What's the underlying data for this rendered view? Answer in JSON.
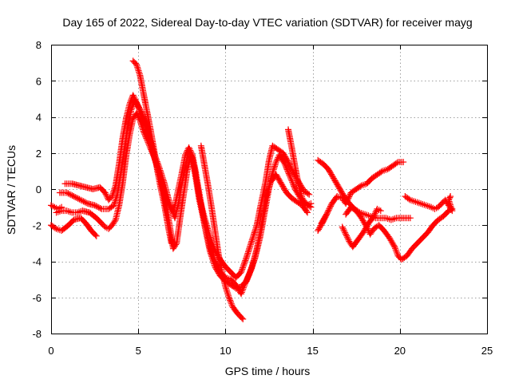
{
  "chart_data": {
    "type": "scatter",
    "title": "Day 165 of 2022, Sidereal Day-to-day VTEC variation (SDTVAR) for receiver mayg",
    "xlabel": "GPS time / hours",
    "ylabel": "SDTVAR / TECUs",
    "xlim": [
      0,
      25
    ],
    "ylim": [
      -8,
      8
    ],
    "x_ticks": [
      "0",
      "5",
      "10",
      "15",
      "20",
      "25"
    ],
    "y_ticks": [
      "-8",
      "-6",
      "-4",
      "-2",
      "0",
      "2",
      "4",
      "6",
      "8"
    ],
    "grid": true,
    "marker": "plus",
    "color": "#ff0000",
    "series": [
      {
        "name": "trace-a",
        "points": [
          [
            0.0,
            -2.0
          ],
          [
            0.3,
            -2.2
          ],
          [
            0.6,
            -2.3
          ],
          [
            1.0,
            -2.0
          ],
          [
            1.3,
            -1.7
          ],
          [
            1.7,
            -1.6
          ],
          [
            2.0,
            -1.9
          ],
          [
            2.3,
            -2.3
          ],
          [
            2.6,
            -2.6
          ]
        ]
      },
      {
        "name": "trace-b",
        "points": [
          [
            0.0,
            -0.9
          ],
          [
            0.2,
            -1.0
          ],
          [
            0.4,
            -1.1
          ],
          [
            0.6,
            -1.0
          ]
        ]
      },
      {
        "name": "trace-c",
        "points": [
          [
            0.3,
            -1.3
          ],
          [
            0.6,
            -1.2
          ],
          [
            0.9,
            -1.2
          ],
          [
            1.2,
            -1.3
          ],
          [
            1.5,
            -1.3
          ],
          [
            1.8,
            -1.2
          ],
          [
            2.2,
            -1.3
          ],
          [
            2.6,
            -1.6
          ],
          [
            2.9,
            -1.9
          ],
          [
            3.1,
            -2.1
          ],
          [
            3.3,
            -2.2
          ],
          [
            3.5,
            -2.0
          ],
          [
            3.7,
            -1.7
          ],
          [
            3.9,
            -0.9
          ],
          [
            4.1,
            0.3
          ],
          [
            4.3,
            1.8
          ],
          [
            4.5,
            3.0
          ],
          [
            4.7,
            3.9
          ],
          [
            4.9,
            4.2
          ],
          [
            5.1,
            3.8
          ],
          [
            5.3,
            3.2
          ],
          [
            5.6,
            2.5
          ],
          [
            5.9,
            1.8
          ],
          [
            6.2,
            0.9
          ],
          [
            6.5,
            -0.5
          ],
          [
            6.8,
            -2.0
          ],
          [
            7.0,
            -3.3
          ],
          [
            7.2,
            -3.0
          ],
          [
            7.4,
            -1.6
          ],
          [
            7.6,
            -0.3
          ],
          [
            7.8,
            1.0
          ],
          [
            8.0,
            1.8
          ],
          [
            8.2,
            1.3
          ],
          [
            8.4,
            0.3
          ],
          [
            8.6,
            -0.8
          ],
          [
            8.8,
            -2.0
          ],
          [
            9.1,
            -3.4
          ],
          [
            9.4,
            -4.3
          ],
          [
            9.7,
            -4.8
          ],
          [
            10.0,
            -5.1
          ],
          [
            10.3,
            -5.3
          ],
          [
            10.6,
            -5.5
          ],
          [
            10.9,
            -5.4
          ],
          [
            11.2,
            -5.1
          ],
          [
            11.5,
            -4.4
          ],
          [
            11.8,
            -3.3
          ],
          [
            12.1,
            -1.8
          ],
          [
            12.3,
            -0.5
          ],
          [
            12.6,
            0.4
          ],
          [
            12.9,
            0.8
          ],
          [
            13.2,
            0.3
          ],
          [
            13.5,
            -0.2
          ],
          [
            13.8,
            -0.5
          ],
          [
            14.1,
            -0.7
          ],
          [
            14.4,
            -0.9
          ],
          [
            14.7,
            -1.3
          ]
        ]
      },
      {
        "name": "trace-d",
        "points": [
          [
            0.5,
            -0.2
          ],
          [
            0.9,
            -0.2
          ],
          [
            1.3,
            -0.4
          ],
          [
            1.7,
            -0.6
          ],
          [
            2.1,
            -0.8
          ],
          [
            2.5,
            -0.9
          ],
          [
            2.9,
            -1.1
          ],
          [
            3.3,
            -1.1
          ],
          [
            3.6,
            -0.9
          ],
          [
            3.8,
            -0.3
          ],
          [
            4.0,
            0.9
          ],
          [
            4.2,
            2.2
          ],
          [
            4.4,
            3.5
          ],
          [
            4.6,
            4.4
          ],
          [
            4.8,
            4.9
          ],
          [
            5.0,
            4.6
          ],
          [
            5.3,
            4.0
          ],
          [
            5.6,
            3.0
          ],
          [
            5.9,
            2.0
          ],
          [
            6.2,
            1.2
          ],
          [
            6.5,
            0.3
          ],
          [
            6.8,
            -0.8
          ],
          [
            7.1,
            -1.6
          ],
          [
            7.3,
            -0.8
          ],
          [
            7.5,
            0.3
          ],
          [
            7.7,
            1.3
          ],
          [
            7.9,
            2.1
          ],
          [
            8.1,
            1.7
          ],
          [
            8.3,
            0.6
          ],
          [
            8.5,
            -0.6
          ],
          [
            8.8,
            -1.9
          ],
          [
            9.1,
            -3.2
          ],
          [
            9.4,
            -4.0
          ],
          [
            9.7,
            -4.6
          ],
          [
            10.0,
            -4.9
          ],
          [
            10.3,
            -5.0
          ],
          [
            10.6,
            -5.3
          ],
          [
            10.9,
            -5.8
          ],
          [
            11.1,
            -5.3
          ],
          [
            11.4,
            -4.6
          ],
          [
            11.7,
            -3.8
          ],
          [
            12.0,
            -2.6
          ],
          [
            12.3,
            -1.0
          ],
          [
            12.6,
            0.6
          ],
          [
            12.9,
            1.5
          ],
          [
            13.1,
            1.9
          ],
          [
            13.4,
            1.4
          ],
          [
            13.7,
            0.7
          ],
          [
            14.0,
            0.0
          ],
          [
            14.3,
            -0.5
          ],
          [
            14.6,
            -0.9
          ],
          [
            14.9,
            -0.8
          ]
        ]
      },
      {
        "name": "trace-e",
        "points": [
          [
            0.8,
            0.3
          ],
          [
            1.2,
            0.3
          ],
          [
            1.6,
            0.2
          ],
          [
            2.0,
            0.1
          ],
          [
            2.4,
            0.0
          ],
          [
            2.8,
            0.1
          ],
          [
            3.1,
            -0.2
          ],
          [
            3.3,
            -0.6
          ],
          [
            3.5,
            -0.4
          ],
          [
            3.7,
            0.2
          ],
          [
            3.9,
            1.4
          ],
          [
            4.1,
            2.8
          ],
          [
            4.3,
            3.9
          ],
          [
            4.5,
            4.7
          ],
          [
            4.7,
            5.2
          ],
          [
            4.9,
            4.8
          ],
          [
            5.1,
            4.3
          ],
          [
            5.4,
            3.6
          ],
          [
            5.7,
            2.5
          ],
          [
            6.0,
            1.5
          ],
          [
            6.3,
            0.5
          ],
          [
            6.6,
            -0.5
          ],
          [
            6.9,
            -1.2
          ],
          [
            7.1,
            -0.9
          ],
          [
            7.3,
            0.0
          ],
          [
            7.5,
            0.9
          ],
          [
            7.7,
            1.9
          ],
          [
            7.9,
            2.3
          ],
          [
            8.1,
            1.9
          ],
          [
            8.3,
            0.9
          ],
          [
            8.5,
            -0.5
          ],
          [
            8.8,
            -1.6
          ],
          [
            9.1,
            -2.6
          ],
          [
            9.4,
            -3.4
          ],
          [
            9.7,
            -3.9
          ],
          [
            10.0,
            -4.3
          ],
          [
            10.3,
            -4.6
          ],
          [
            10.6,
            -4.9
          ],
          [
            10.9,
            -4.6
          ],
          [
            11.2,
            -3.8
          ],
          [
            11.5,
            -2.9
          ],
          [
            11.8,
            -2.0
          ],
          [
            12.0,
            -1.0
          ],
          [
            12.3,
            0.4
          ],
          [
            12.5,
            1.6
          ],
          [
            12.7,
            2.4
          ],
          [
            13.0,
            2.2
          ],
          [
            13.3,
            2.0
          ],
          [
            13.6,
            1.5
          ],
          [
            13.9,
            0.9
          ],
          [
            14.2,
            0.4
          ],
          [
            14.5,
            -0.1
          ],
          [
            14.8,
            -0.3
          ]
        ]
      },
      {
        "name": "trace-f",
        "points": [
          [
            4.7,
            7.1
          ],
          [
            4.9,
            6.9
          ],
          [
            5.1,
            6.3
          ],
          [
            5.3,
            5.3
          ],
          [
            5.5,
            4.3
          ],
          [
            5.7,
            3.3
          ],
          [
            5.9,
            2.2
          ],
          [
            6.1,
            1.0
          ],
          [
            6.3,
            0.0
          ],
          [
            6.5,
            -0.9
          ],
          [
            6.7,
            -2.0
          ],
          [
            6.9,
            -3.0
          ]
        ]
      },
      {
        "name": "trace-g",
        "points": [
          [
            8.6,
            2.4
          ],
          [
            8.8,
            1.3
          ],
          [
            9.0,
            0.2
          ],
          [
            9.2,
            -1.0
          ],
          [
            9.4,
            -2.3
          ],
          [
            9.6,
            -3.6
          ],
          [
            9.8,
            -4.6
          ],
          [
            10.0,
            -5.4
          ],
          [
            10.2,
            -6.0
          ],
          [
            10.4,
            -6.5
          ],
          [
            10.7,
            -6.9
          ],
          [
            11.0,
            -7.2
          ]
        ]
      },
      {
        "name": "trace-h",
        "points": [
          [
            13.6,
            3.3
          ],
          [
            13.8,
            2.3
          ],
          [
            14.0,
            1.2
          ],
          [
            14.2,
            0.2
          ],
          [
            14.4,
            -0.5
          ],
          [
            14.6,
            -0.8
          ],
          [
            14.9,
            -1.0
          ]
        ]
      },
      {
        "name": "trace-i",
        "points": [
          [
            15.3,
            1.6
          ],
          [
            15.6,
            1.4
          ],
          [
            15.9,
            1.1
          ],
          [
            16.2,
            0.6
          ],
          [
            16.5,
            0.1
          ],
          [
            16.8,
            -0.4
          ],
          [
            17.1,
            -0.8
          ],
          [
            17.4,
            -1.1
          ],
          [
            17.7,
            -1.3
          ],
          [
            18.0,
            -1.4
          ],
          [
            18.3,
            -1.5
          ],
          [
            18.6,
            -1.6
          ],
          [
            18.9,
            -1.6
          ],
          [
            19.2,
            -1.6
          ],
          [
            19.5,
            -1.7
          ],
          [
            19.8,
            -1.6
          ],
          [
            20.1,
            -1.6
          ],
          [
            20.4,
            -1.6
          ],
          [
            20.6,
            -1.6
          ]
        ]
      },
      {
        "name": "trace-j",
        "points": [
          [
            15.5,
            -1.9
          ],
          [
            15.8,
            -1.4
          ],
          [
            16.1,
            -0.8
          ],
          [
            16.4,
            -0.4
          ],
          [
            16.7,
            -0.5
          ],
          [
            16.9,
            -0.8
          ],
          [
            17.2,
            -0.2
          ],
          [
            17.5,
            0.0
          ],
          [
            17.8,
            0.2
          ],
          [
            18.1,
            0.3
          ],
          [
            18.4,
            0.6
          ],
          [
            18.7,
            0.8
          ],
          [
            19.0,
            1.0
          ],
          [
            19.3,
            1.1
          ],
          [
            19.6,
            1.3
          ],
          [
            19.9,
            1.5
          ],
          [
            20.2,
            1.5
          ]
        ]
      },
      {
        "name": "trace-k",
        "points": [
          [
            15.3,
            -2.3
          ],
          [
            15.6,
            -1.8
          ],
          [
            15.8,
            -1.4
          ]
        ]
      },
      {
        "name": "trace-l",
        "points": [
          [
            16.7,
            -2.1
          ],
          [
            16.9,
            -2.5
          ],
          [
            17.1,
            -2.9
          ],
          [
            17.3,
            -3.2
          ],
          [
            17.6,
            -2.8
          ],
          [
            17.9,
            -2.4
          ],
          [
            18.2,
            -1.9
          ],
          [
            18.5,
            -1.5
          ],
          [
            18.7,
            -1.1
          ],
          [
            18.9,
            -1.2
          ]
        ]
      },
      {
        "name": "trace-m",
        "points": [
          [
            16.9,
            -1.4
          ],
          [
            17.2,
            -1.0
          ],
          [
            17.5,
            -1.2
          ],
          [
            17.8,
            -1.6
          ],
          [
            18.1,
            -2.1
          ],
          [
            18.3,
            -2.5
          ],
          [
            18.5,
            -2.2
          ],
          [
            18.8,
            -2.0
          ],
          [
            19.1,
            -2.3
          ],
          [
            19.4,
            -2.7
          ],
          [
            19.7,
            -3.2
          ],
          [
            19.9,
            -3.7
          ],
          [
            20.1,
            -3.9
          ],
          [
            20.4,
            -3.7
          ],
          [
            20.7,
            -3.3
          ],
          [
            21.0,
            -3.0
          ],
          [
            21.3,
            -2.7
          ],
          [
            21.6,
            -2.4
          ],
          [
            21.9,
            -2.0
          ],
          [
            22.2,
            -1.7
          ],
          [
            22.5,
            -1.5
          ],
          [
            22.8,
            -1.2
          ],
          [
            23.0,
            -1.1
          ]
        ]
      },
      {
        "name": "trace-n",
        "points": [
          [
            20.3,
            -0.4
          ],
          [
            20.6,
            -0.6
          ],
          [
            20.9,
            -0.7
          ],
          [
            21.2,
            -0.8
          ],
          [
            21.5,
            -0.9
          ],
          [
            21.8,
            -1.0
          ],
          [
            22.0,
            -1.1
          ],
          [
            22.2,
            -1.0
          ],
          [
            22.4,
            -0.8
          ],
          [
            22.6,
            -0.6
          ],
          [
            22.8,
            -0.9
          ],
          [
            23.0,
            -1.2
          ],
          [
            22.8,
            -0.6
          ],
          [
            22.9,
            -0.4
          ]
        ]
      }
    ]
  }
}
